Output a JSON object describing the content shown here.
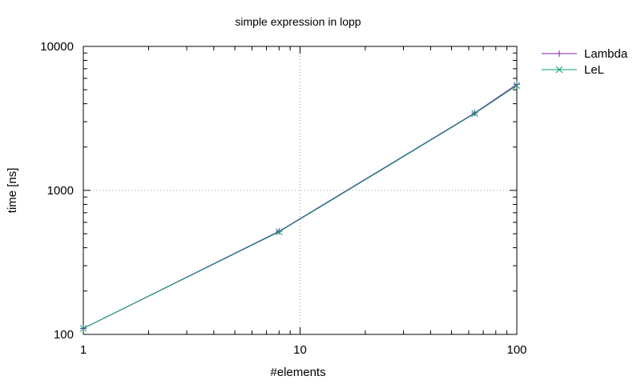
{
  "chart_data": {
    "type": "line",
    "title": "simple expression in lopp",
    "xlabel": "#elements",
    "ylabel": "time [ns]",
    "x_scale": "log",
    "y_scale": "log",
    "xlim": [
      1,
      100
    ],
    "ylim": [
      100,
      10000
    ],
    "x_ticks": [
      "1",
      "10",
      "100"
    ],
    "y_ticks": [
      "100",
      "1000",
      "10000"
    ],
    "grid": true,
    "legend_position": "top-right",
    "series": [
      {
        "name": "Lambda",
        "color": "#7a1fa2",
        "marker": "plus",
        "x": [
          1,
          8,
          64,
          100
        ],
        "y": [
          110,
          520,
          3450,
          5450
        ]
      },
      {
        "name": "LeL",
        "color": "#009e73",
        "marker": "cross",
        "x": [
          1,
          8,
          64,
          100
        ],
        "y": [
          110,
          515,
          3420,
          5350
        ]
      }
    ]
  }
}
